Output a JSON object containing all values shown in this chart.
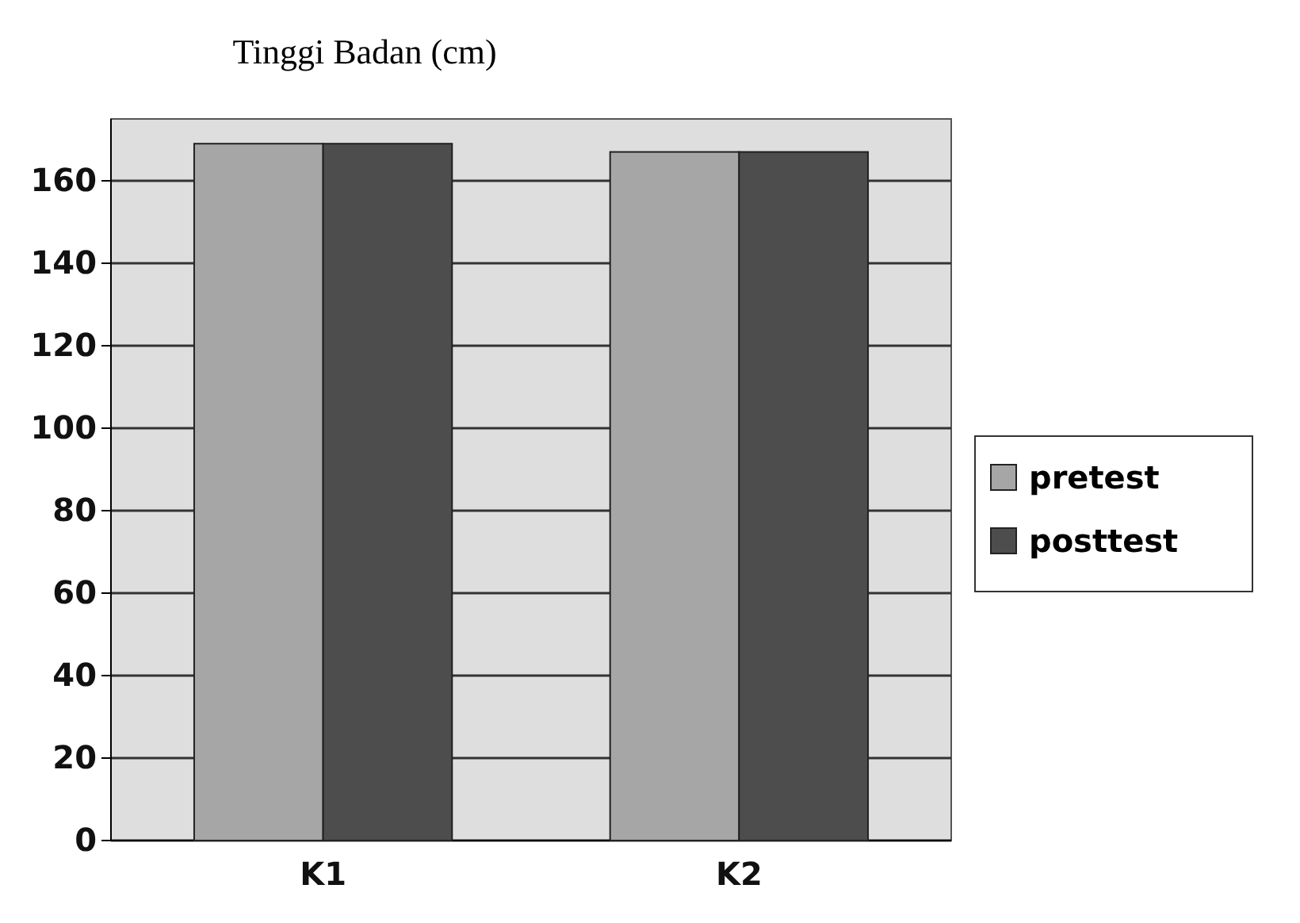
{
  "chart_data": {
    "type": "bar",
    "title": "Tinggi Badan (cm)",
    "categories": [
      "K1",
      "K2"
    ],
    "series": [
      {
        "name": "pretest",
        "color": "#a6a6a6",
        "values": [
          169,
          167
        ]
      },
      {
        "name": "posttest",
        "color": "#4d4d4d",
        "values": [
          169,
          167
        ]
      }
    ],
    "ylim": [
      0,
      175
    ],
    "yticks": [
      0,
      20,
      40,
      60,
      80,
      100,
      120,
      140,
      160
    ],
    "grid": "y",
    "legend": "right"
  }
}
